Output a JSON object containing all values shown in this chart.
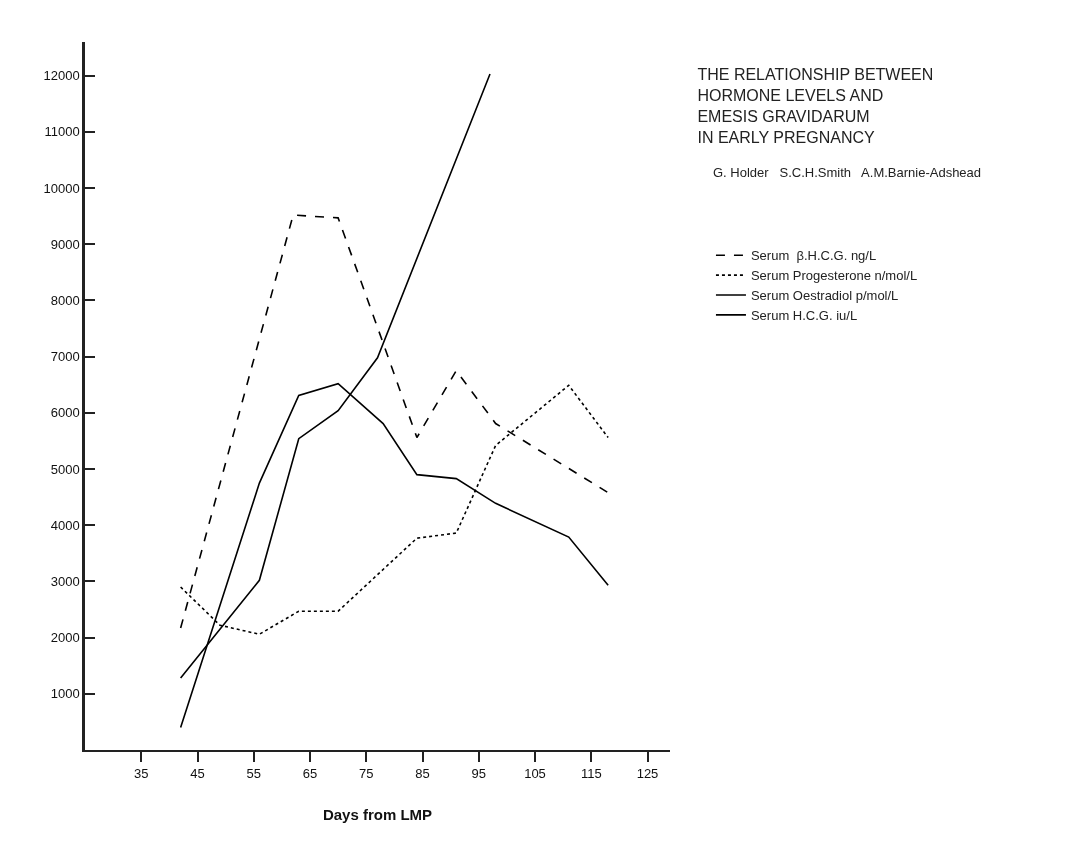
{
  "chart_data": {
    "type": "line",
    "title": "THE RELATIONSHIP BETWEEN\nHORMONE LEVELS AND\nEMESIS GRAVIDARUM\nIN EARLY PREGNANCY",
    "subtitle": "G. Holder   S.C.H.Smith   A.M.Barnie-Adshead",
    "xlabel": "Days from LMP",
    "series": [
      {
        "name": "Serum  β.H.C.G. ng/L",
        "color": "#000000",
        "line_style": "dashed",
        "x": [
          42,
          62,
          70,
          76,
          84,
          91,
          98,
          118
        ],
        "values": [
          2170,
          9520,
          9470,
          7800,
          5560,
          6750,
          5810,
          4580
        ]
      },
      {
        "name": "Serum Progesterone n/mol/L",
        "color": "#000000",
        "line_style": "dotted",
        "x": [
          42,
          49,
          56,
          63,
          70,
          84,
          91,
          98,
          111,
          118
        ],
        "values": [
          2900,
          2220,
          2060,
          2470,
          2470,
          3770,
          3860,
          5420,
          6490,
          5560
        ]
      },
      {
        "name": "Serum Oestradiol p/mol/L",
        "color": "#000000",
        "line_style": "solid",
        "x": [
          42,
          56,
          63,
          70,
          77,
          97
        ],
        "values": [
          1280,
          3020,
          5540,
          6040,
          6980,
          12030
        ]
      },
      {
        "name": "Serum H.C.G. iu/L",
        "color": "#000000",
        "line_style": "solid",
        "x": [
          42,
          56,
          63,
          70,
          78,
          84,
          91,
          98,
          111,
          118
        ],
        "values": [
          400,
          4750,
          6310,
          6520,
          5810,
          4900,
          4830,
          4390,
          3790,
          2930
        ]
      }
    ],
    "xlim": [
      25,
      129
    ],
    "xticks": [
      35,
      45,
      55,
      65,
      75,
      85,
      95,
      105,
      115,
      125
    ],
    "ylim": [
      0,
      12600
    ],
    "yticks": [
      1000,
      2000,
      3000,
      4000,
      5000,
      6000,
      7000,
      8000,
      9000,
      10000,
      11000,
      12000
    ],
    "grid": false,
    "legend": "right",
    "marker": "none"
  }
}
